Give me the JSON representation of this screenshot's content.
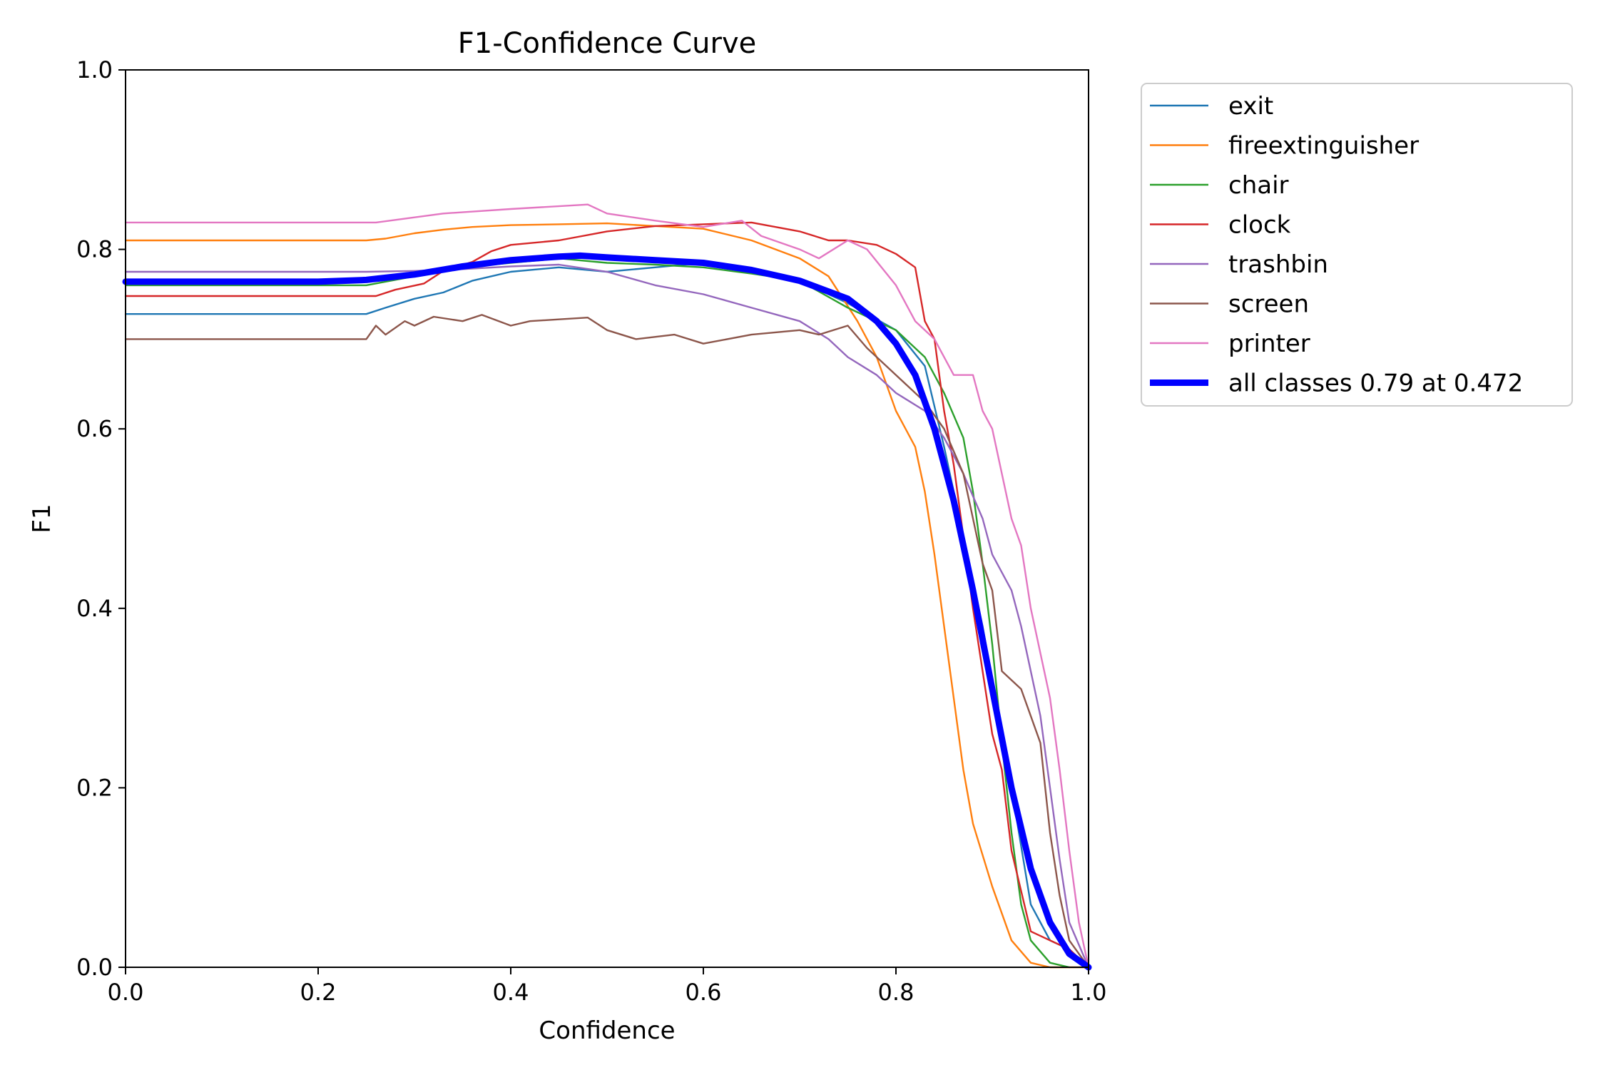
{
  "chart_data": {
    "type": "line",
    "title": "F1-Confidence Curve",
    "xlabel": "Confidence",
    "ylabel": "F1",
    "xlim": [
      0,
      1
    ],
    "ylim": [
      0,
      1
    ],
    "xticks": [
      "0.0",
      "0.2",
      "0.4",
      "0.6",
      "0.8",
      "1.0"
    ],
    "yticks": [
      "0.0",
      "0.2",
      "0.4",
      "0.6",
      "0.8",
      "1.0"
    ],
    "grid": false,
    "legend_position": "outside-top-right",
    "series": [
      {
        "name": "exit",
        "color": "#1f77b4",
        "width": 1,
        "x": [
          0,
          0.25,
          0.27,
          0.3,
          0.33,
          0.36,
          0.4,
          0.45,
          0.5,
          0.55,
          0.6,
          0.65,
          0.7,
          0.75,
          0.8,
          0.83,
          0.85,
          0.87,
          0.89,
          0.9,
          0.92,
          0.94,
          0.96,
          0.98,
          1.0
        ],
        "y": [
          0.728,
          0.728,
          0.735,
          0.745,
          0.752,
          0.765,
          0.775,
          0.78,
          0.775,
          0.78,
          0.785,
          0.775,
          0.765,
          0.74,
          0.71,
          0.67,
          0.58,
          0.48,
          0.38,
          0.32,
          0.2,
          0.07,
          0.03,
          0.02,
          0.0
        ]
      },
      {
        "name": "fireextinguisher",
        "color": "#ff7f0e",
        "width": 1,
        "x": [
          0,
          0.25,
          0.27,
          0.3,
          0.33,
          0.36,
          0.4,
          0.45,
          0.5,
          0.55,
          0.6,
          0.65,
          0.7,
          0.73,
          0.76,
          0.78,
          0.8,
          0.82,
          0.83,
          0.84,
          0.85,
          0.86,
          0.87,
          0.88,
          0.9,
          0.92,
          0.94,
          0.96,
          1.0
        ],
        "y": [
          0.81,
          0.81,
          0.812,
          0.818,
          0.822,
          0.825,
          0.827,
          0.828,
          0.829,
          0.826,
          0.823,
          0.81,
          0.79,
          0.77,
          0.72,
          0.68,
          0.62,
          0.58,
          0.53,
          0.46,
          0.38,
          0.3,
          0.22,
          0.16,
          0.09,
          0.03,
          0.005,
          0.0,
          0.0
        ]
      },
      {
        "name": "chair",
        "color": "#2ca02c",
        "width": 1,
        "x": [
          0,
          0.25,
          0.3,
          0.35,
          0.4,
          0.45,
          0.5,
          0.55,
          0.6,
          0.65,
          0.7,
          0.75,
          0.8,
          0.83,
          0.85,
          0.87,
          0.88,
          0.89,
          0.9,
          0.91,
          0.92,
          0.93,
          0.94,
          0.96,
          0.98
        ],
        "y": [
          0.76,
          0.76,
          0.77,
          0.78,
          0.785,
          0.79,
          0.785,
          0.783,
          0.78,
          0.773,
          0.765,
          0.735,
          0.71,
          0.68,
          0.64,
          0.59,
          0.53,
          0.45,
          0.36,
          0.25,
          0.15,
          0.07,
          0.03,
          0.005,
          0.0
        ]
      },
      {
        "name": "clock",
        "color": "#d62728",
        "width": 1,
        "x": [
          0,
          0.26,
          0.28,
          0.31,
          0.33,
          0.36,
          0.38,
          0.4,
          0.45,
          0.5,
          0.55,
          0.6,
          0.65,
          0.7,
          0.73,
          0.75,
          0.78,
          0.8,
          0.82,
          0.83,
          0.84,
          0.85,
          0.86,
          0.87,
          0.88,
          0.89,
          0.9,
          0.91,
          0.92,
          0.94,
          0.96,
          0.98,
          1.0
        ],
        "y": [
          0.748,
          0.748,
          0.755,
          0.762,
          0.776,
          0.786,
          0.798,
          0.805,
          0.81,
          0.82,
          0.826,
          0.828,
          0.83,
          0.82,
          0.81,
          0.81,
          0.805,
          0.795,
          0.78,
          0.72,
          0.7,
          0.62,
          0.56,
          0.48,
          0.4,
          0.33,
          0.26,
          0.22,
          0.13,
          0.04,
          0.03,
          0.02,
          0.0
        ]
      },
      {
        "name": "trashbin",
        "color": "#9467bd",
        "width": 1,
        "x": [
          0,
          0.25,
          0.3,
          0.35,
          0.4,
          0.45,
          0.5,
          0.55,
          0.6,
          0.65,
          0.7,
          0.73,
          0.75,
          0.78,
          0.8,
          0.83,
          0.85,
          0.87,
          0.89,
          0.9,
          0.92,
          0.93,
          0.94,
          0.95,
          0.96,
          0.97,
          0.98,
          1.0
        ],
        "y": [
          0.775,
          0.775,
          0.776,
          0.778,
          0.781,
          0.783,
          0.775,
          0.76,
          0.75,
          0.735,
          0.72,
          0.7,
          0.68,
          0.66,
          0.64,
          0.62,
          0.59,
          0.55,
          0.5,
          0.46,
          0.42,
          0.38,
          0.33,
          0.28,
          0.2,
          0.12,
          0.05,
          0.0
        ]
      },
      {
        "name": "screen",
        "color": "#8c564b",
        "width": 1,
        "x": [
          0,
          0.25,
          0.26,
          0.27,
          0.29,
          0.3,
          0.32,
          0.35,
          0.37,
          0.4,
          0.42,
          0.45,
          0.48,
          0.5,
          0.53,
          0.57,
          0.6,
          0.65,
          0.7,
          0.72,
          0.75,
          0.77,
          0.8,
          0.83,
          0.85,
          0.87,
          0.89,
          0.9,
          0.91,
          0.93,
          0.95,
          0.96,
          0.97,
          0.98,
          1.0
        ],
        "y": [
          0.7,
          0.7,
          0.715,
          0.705,
          0.72,
          0.715,
          0.725,
          0.72,
          0.727,
          0.715,
          0.72,
          0.722,
          0.724,
          0.71,
          0.7,
          0.705,
          0.695,
          0.705,
          0.71,
          0.705,
          0.715,
          0.69,
          0.66,
          0.63,
          0.6,
          0.55,
          0.45,
          0.42,
          0.33,
          0.31,
          0.25,
          0.15,
          0.08,
          0.03,
          0.0
        ]
      },
      {
        "name": "printer",
        "color": "#e377c2",
        "width": 1,
        "x": [
          0,
          0.26,
          0.33,
          0.4,
          0.48,
          0.5,
          0.55,
          0.6,
          0.64,
          0.66,
          0.7,
          0.72,
          0.75,
          0.77,
          0.8,
          0.82,
          0.84,
          0.86,
          0.88,
          0.89,
          0.9,
          0.91,
          0.92,
          0.93,
          0.94,
          0.95,
          0.96,
          0.97,
          0.98,
          0.99,
          1.0
        ],
        "y": [
          0.83,
          0.83,
          0.84,
          0.845,
          0.85,
          0.84,
          0.832,
          0.825,
          0.832,
          0.815,
          0.8,
          0.79,
          0.81,
          0.8,
          0.76,
          0.72,
          0.7,
          0.66,
          0.66,
          0.62,
          0.6,
          0.55,
          0.5,
          0.47,
          0.4,
          0.35,
          0.3,
          0.22,
          0.13,
          0.05,
          0.0
        ]
      },
      {
        "name": "all classes 0.79 at 0.472",
        "color": "#0000ff",
        "width": 4,
        "x": [
          0,
          0.1,
          0.2,
          0.25,
          0.3,
          0.35,
          0.4,
          0.45,
          0.472,
          0.5,
          0.55,
          0.6,
          0.65,
          0.7,
          0.75,
          0.78,
          0.8,
          0.82,
          0.84,
          0.86,
          0.88,
          0.9,
          0.92,
          0.94,
          0.96,
          0.98,
          1.0
        ],
        "y": [
          0.764,
          0.764,
          0.764,
          0.766,
          0.772,
          0.781,
          0.788,
          0.792,
          0.793,
          0.791,
          0.788,
          0.785,
          0.777,
          0.765,
          0.745,
          0.72,
          0.695,
          0.66,
          0.6,
          0.52,
          0.42,
          0.31,
          0.2,
          0.11,
          0.05,
          0.015,
          0.0
        ]
      }
    ]
  }
}
